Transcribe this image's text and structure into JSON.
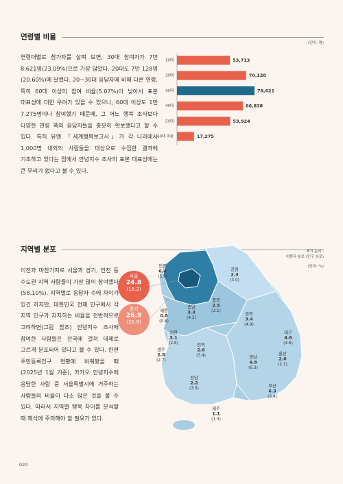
{
  "sections": [
    {
      "title": "연령별 비율",
      "unit": "(단위: 명)",
      "body": "연령대별로 참가자를 살펴 보면, 30대 참여자가 7만 8,621명(23.09%)으로 가장 많았다. 20대도 7만 128명(20.60%)에 달했다. 20~30대 응답자에 비해 다른 연령, 특히 60대 이상의 참여 비율(5.07%)이 낮아서 표본 대표성에 대한 우려가 있을 수 있으나, 60대 이상도 1만 7,275명이나 참여했기 때문에, 그 어느 행복 조사보다 다양한 연령 폭의 응답자들을 충분히 확보했다고 할 수 있다. 특히 유엔 「세계행복보고서」가 각 나라에서 1,000명 내외의 사람들을 대상으로 수집한 결과에 기초하고 있다는 점에서 안녕지수 조사의 표본 대표성에는 큰 무리가 없다고 볼 수 있다."
    },
    {
      "title": "지역별 분포",
      "note": [
        "표기 순서 :",
        "이용자 분포 (인구 분포)"
      ],
      "unit": "(단위: %)",
      "body": "이전과 마찬가지로 서울과 경기, 인천 등 수도권 지역 사람들이 가장 많이 참여했다(58.10%). 지역별로 응답자 수에 차이가 있긴 하지만, 대한민국 전체 인구에서 각 지역 인구가 차지하는 비율을 전반적으로 고려하면(그림 참조) 안녕지수 조사에 참여한 사람들은 전국에 걸쳐 대체로 고르게 분포되어 있다고 볼 수 있다. 한편 주민등록인구 현황에 비춰봤을 때(2025년 1월 기준), 카카오 안녕지수에 응답한 사람 중 서울특별시에 거주하는 사람들의 비율이 다소 많은 것을 볼 수 있다. 따라서 지역별 행복 차이를 분석할 때 해석에 주의해야 할 필요가 있다.",
      "regions": [
        {
          "name": "서울",
          "value": "24.8",
          "population": "(18.2)"
        },
        {
          "name": "경기",
          "value": "26.9",
          "population": "(26.8)"
        },
        {
          "name": "인천",
          "value": "6.4",
          "population": "(5.9)"
        },
        {
          "name": "강원",
          "value": "2.4",
          "population": "(3.0)"
        },
        {
          "name": "세종",
          "value": "0.8",
          "population": "(0.8)"
        },
        {
          "name": "충남",
          "value": "3.3",
          "population": "(4.2)"
        },
        {
          "name": "충북",
          "value": "2.5",
          "population": "(3.1)"
        },
        {
          "name": "대전",
          "value": "3.1",
          "population": "(2.8)"
        },
        {
          "name": "경북",
          "value": "3.4",
          "population": "(4.9)"
        },
        {
          "name": "대구",
          "value": "4.6",
          "population": "(4.6)"
        },
        {
          "name": "전북",
          "value": "2.6",
          "population": "(3.4)"
        },
        {
          "name": "광주",
          "value": "2.8",
          "population": "(2.7)"
        },
        {
          "name": "경남",
          "value": "4.8",
          "population": "(6.3)"
        },
        {
          "name": "울산",
          "value": "2.0",
          "population": "(2.1)"
        },
        {
          "name": "전남",
          "value": "2.2",
          "population": "(3.5)"
        },
        {
          "name": "부산",
          "value": "6.3",
          "population": "(6.4)"
        },
        {
          "name": "제주",
          "value": "1.1",
          "population": "(1.3)"
        }
      ]
    }
  ],
  "chart_data": {
    "type": "bar",
    "orientation": "horizontal",
    "categories": [
      "10대",
      "20대",
      "30대",
      "40대",
      "50대",
      "60대 이상"
    ],
    "values": [
      53713,
      70128,
      78621,
      66838,
      53924,
      17275
    ],
    "value_labels": [
      "53,713",
      "70,128",
      "78,621",
      "66,838",
      "53,924",
      "17,275"
    ],
    "colors": [
      "#e8614d",
      "#e8614d",
      "#1d6a8c",
      "#e8614d",
      "#e8614d",
      "#e8614d"
    ],
    "xlim": [
      0,
      80000
    ]
  },
  "page_number": "020"
}
